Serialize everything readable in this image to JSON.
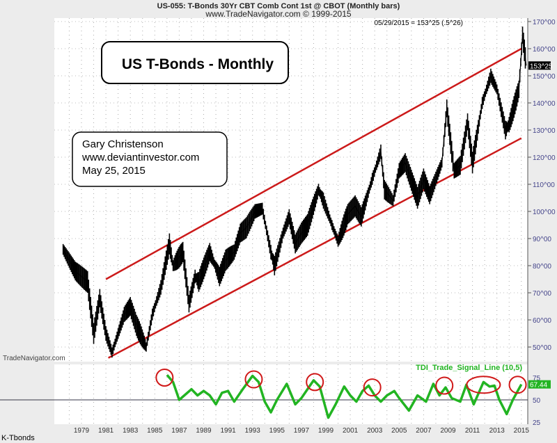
{
  "header": {
    "title": "US-055:  T-Bonds 30Yr CBT Comb Cont 1st @ CBOT  (Monthly bars)",
    "subtitle": "www.TradeNavigator.com © 1999-2015",
    "last_quote": "05/29/2015 = 153^25 (.5^26)",
    "watermark": "TradeNavigator.com",
    "footer_label": "K-Tbonds"
  },
  "annotations": {
    "title_box": "US T-Bonds - Monthly",
    "author_line1": "Gary Christenson",
    "author_line2": "www.deviantinvestor.com",
    "author_line3": "May 25, 2015"
  },
  "chart_data": [
    {
      "type": "line",
      "title": "US T-Bonds - Monthly",
      "style": "monthly bars",
      "ylim": [
        45,
        170
      ],
      "y_ticks": [
        "50^00",
        "60^00",
        "70^00",
        "80^00",
        "90^00",
        "100^00",
        "110^00",
        "120^00",
        "130^00",
        "140^00",
        "150^00",
        "160^00",
        "170^00"
      ],
      "y_tick_values": [
        50,
        60,
        70,
        80,
        90,
        100,
        110,
        120,
        130,
        140,
        150,
        160,
        170
      ],
      "x_ticks": [
        "1979",
        "1981",
        "1983",
        "1985",
        "1987",
        "1989",
        "1991",
        "1993",
        "1995",
        "1997",
        "1999",
        "2001",
        "2003",
        "2005",
        "2007",
        "2009",
        "2011",
        "2013",
        "2015"
      ],
      "last_value_label": "153^25",
      "grid": true,
      "colors": {
        "price": "#000000",
        "channel": "#cc1a1a"
      },
      "series": [
        {
          "x": [
            1977.5,
            1978,
            1978.5,
            1979.5,
            1980,
            1980.5,
            1981,
            1981.5,
            1982,
            1982.5,
            1983,
            1983.5,
            1984.3,
            1984.8,
            1985.5,
            1986.2,
            1986.5,
            1987.3,
            1987.8,
            1988.3,
            1988.6,
            1989.5,
            1990.3,
            1990.8,
            1991.5,
            1992,
            1992.5,
            1993.2,
            1993.8,
            1994.5,
            1994.8,
            1995.5,
            1996,
            1996.5,
            1997,
            1997.5,
            1998.4,
            1998.8,
            1999.5,
            2000,
            2000.8,
            2001.4,
            2001.9,
            2002.8,
            2003.5,
            2003.8,
            2004.5,
            2005,
            2005.5,
            2006.5,
            2007,
            2007.5,
            2008.5,
            2008.9,
            2009.3,
            2009.5,
            2010,
            2010.6,
            2011,
            2011.8,
            2012.5,
            2013,
            2013.7,
            2014,
            2014.8,
            2015.1,
            2015.4
          ],
          "y": [
            86,
            82,
            78,
            74,
            55,
            68,
            55,
            48,
            55,
            62,
            65,
            58,
            50,
            62,
            72,
            88,
            80,
            85,
            66,
            76,
            74,
            85,
            76,
            82,
            85,
            92,
            94,
            100,
            101,
            85,
            80,
            92,
            98,
            88,
            92,
            95,
            108,
            104,
            95,
            89,
            99,
            102,
            98,
            112,
            122,
            108,
            104,
            115,
            118,
            105,
            112,
            106,
            118,
            138,
            122,
            115,
            117,
            133,
            118,
            140,
            150,
            145,
            130,
            132,
            145,
            165,
            153.78
          ]
        }
      ],
      "trendlines": [
        {
          "name": "upper channel",
          "from": [
            1981,
            75
          ],
          "to": [
            2015,
            160
          ]
        },
        {
          "name": "lower channel",
          "from": [
            1981.2,
            46
          ],
          "to": [
            2015,
            127
          ]
        }
      ]
    },
    {
      "type": "line",
      "legend": "TDI_Trade_Signal_Line (10,5)",
      "ylim": [
        22,
        85
      ],
      "y_ticks": [
        "25",
        "50",
        "75"
      ],
      "y_tick_values": [
        25,
        50,
        75
      ],
      "reference_line": 50,
      "last_value_label": "67.44",
      "colors": {
        "line": "#22b422",
        "circles": "#d01818"
      },
      "series": [
        {
          "x": [
            1986,
            1986.5,
            1987,
            1988,
            1988.5,
            1989,
            1989.5,
            1990,
            1990.5,
            1991,
            1991.5,
            1992.2,
            1993,
            1993.5,
            1994,
            1994.5,
            1995,
            1995.8,
            1996.5,
            1997,
            1997.5,
            1998,
            1998.5,
            1999.2,
            1999.8,
            2000.5,
            2001,
            2001.5,
            2002,
            2002.5,
            2003,
            2003.5,
            2004,
            2004.6,
            2005,
            2005.8,
            2006.5,
            2007.2,
            2007.8,
            2008.3,
            2008.8,
            2009.3,
            2010,
            2010.5,
            2011.1,
            2011.9,
            2012.4,
            2012.8,
            2013.2,
            2013.8,
            2014.3,
            2015
          ],
          "y": [
            78,
            70,
            50,
            62,
            55,
            60,
            55,
            45,
            58,
            60,
            48,
            62,
            77,
            70,
            48,
            36,
            50,
            68,
            45,
            52,
            62,
            72,
            65,
            30,
            45,
            65,
            55,
            48,
            60,
            66,
            55,
            48,
            55,
            60,
            52,
            38,
            55,
            48,
            68,
            55,
            64,
            52,
            48,
            67,
            45,
            70,
            65,
            66,
            50,
            34,
            50,
            67.44
          ]
        }
      ],
      "highlighted_peaks": [
        [
          1985.8,
          75
        ],
        [
          1993.1,
          73
        ],
        [
          1998.1,
          70
        ],
        [
          2002.8,
          64
        ],
        [
          2008.7,
          66
        ],
        [
          2011.9,
          67
        ],
        [
          2014.7,
          67
        ]
      ]
    }
  ]
}
